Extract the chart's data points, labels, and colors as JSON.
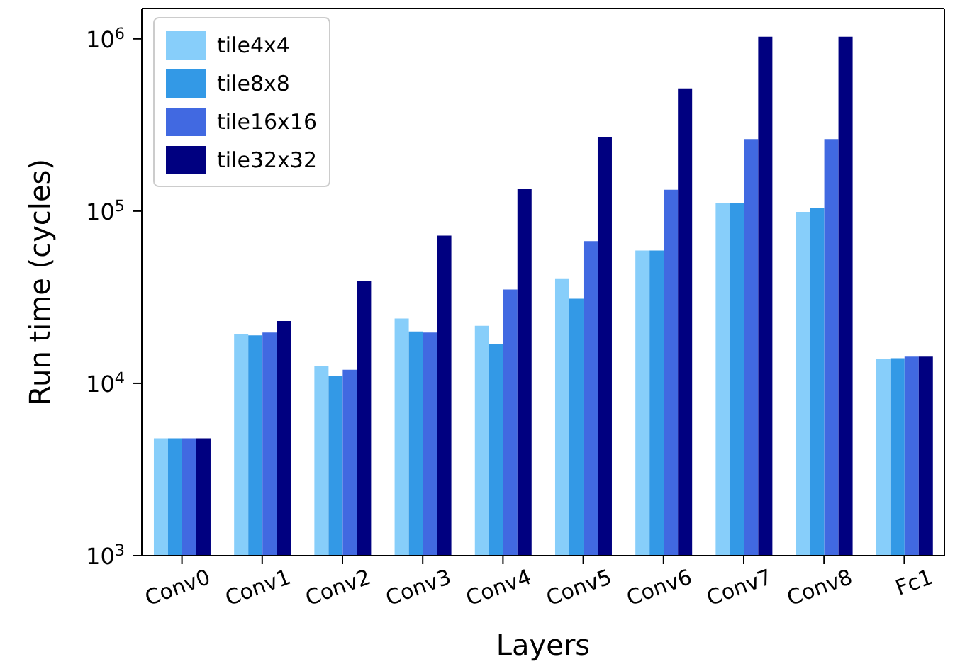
{
  "chart_data": {
    "type": "bar",
    "xlabel": "Layers",
    "ylabel": "Run time (cycles)",
    "categories": [
      "Conv0",
      "Conv1",
      "Conv2",
      "Conv3",
      "Conv4",
      "Conv5",
      "Conv6",
      "Conv7",
      "Conv8",
      "Fc1"
    ],
    "series": [
      {
        "name": "tile4x4",
        "color": "#87cefa",
        "values": [
          4800,
          19400,
          12600,
          23800,
          21600,
          40700,
          59000,
          112000,
          99000,
          13900
        ]
      },
      {
        "name": "tile8x8",
        "color": "#3399e6",
        "values": [
          4800,
          19000,
          11100,
          20000,
          17000,
          31000,
          59000,
          112000,
          104000,
          14000
        ]
      },
      {
        "name": "tile16x16",
        "color": "#4169e1",
        "values": [
          4800,
          19700,
          12000,
          19700,
          35100,
          67000,
          133000,
          262000,
          262000,
          14300
        ]
      },
      {
        "name": "tile32x32",
        "color": "#000080",
        "values": [
          4800,
          23000,
          39200,
          72000,
          135000,
          270000,
          516000,
          1030000,
          1030000,
          14300
        ]
      }
    ],
    "log": "y",
    "ylim": [
      1000,
      1500000
    ],
    "yticks": [
      {
        "value": 1000,
        "label": "10$^{3}$"
      },
      {
        "value": 10000,
        "label": "10$^{4}$"
      },
      {
        "value": 100000,
        "label": "10$^{5}$"
      },
      {
        "value": 1000000,
        "label": "10$^{6}$"
      }
    ],
    "legend": "top left",
    "grid": false
  }
}
